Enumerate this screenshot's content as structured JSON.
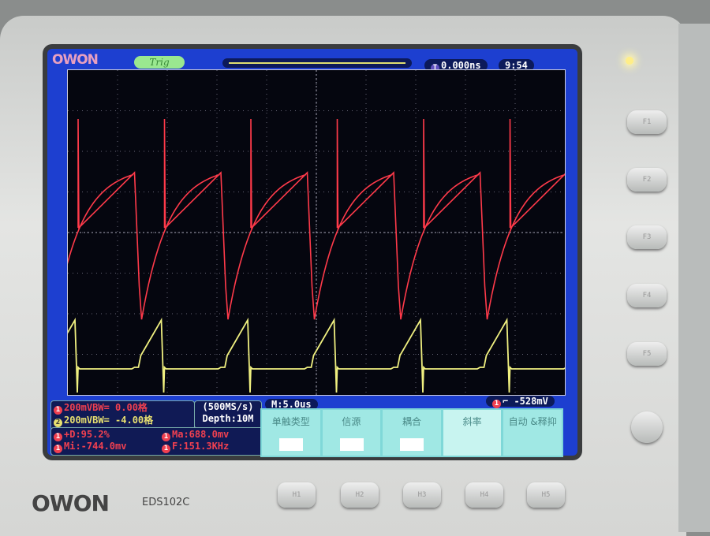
{
  "header": {
    "logo": "OWON",
    "trig_label": "Trig",
    "trigger_time": "0.000ns",
    "clock": "9:54"
  },
  "channels": [
    {
      "num": "1",
      "info": "200mVBW= 0.00格",
      "color": "#f04050"
    },
    {
      "num": "2",
      "info": "200mVBW= -4.00格",
      "color": "#e8e070"
    }
  ],
  "acquisition": {
    "sample_rate": "(500MS/s)",
    "depth": "Depth:10M"
  },
  "measurements": [
    {
      "ch": "1",
      "text": "+D:95.2%"
    },
    {
      "ch": "1",
      "text": "Ma:688.0mv"
    },
    {
      "ch": "1",
      "text": "Mi:-744.0mv"
    },
    {
      "ch": "1",
      "text": "F:151.3KHz"
    }
  ],
  "timebase": "M:5.0us",
  "trigger_level": {
    "ch": "1",
    "value": "-528mV"
  },
  "menu": [
    {
      "label": "单触类型"
    },
    {
      "label": "信源"
    },
    {
      "label": "耦合"
    },
    {
      "label": "斜率"
    },
    {
      "label": "自动 &释抑"
    }
  ],
  "softkeys": [
    "F1",
    "F2",
    "F3",
    "F4",
    "F5"
  ],
  "hkeys": [
    "H1",
    "H2",
    "H3",
    "H4",
    "H5"
  ],
  "device": {
    "brand": "OWON",
    "model": "EDS102C"
  }
}
